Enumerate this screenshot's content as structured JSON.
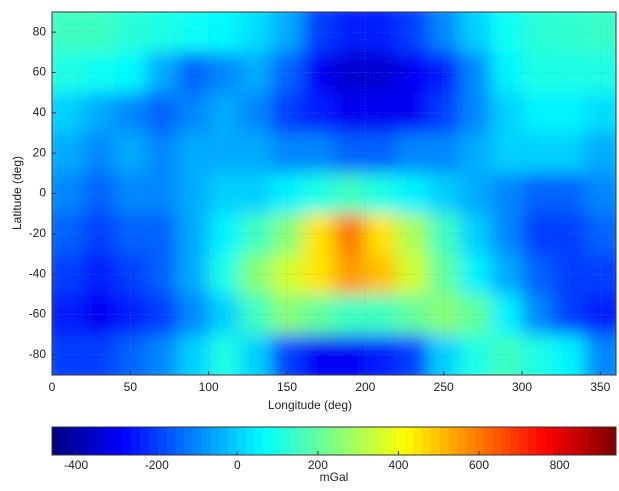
{
  "chart_data": {
    "type": "heatmap",
    "xlabel": "Longitude (deg)",
    "ylabel": "Latitude (deg)",
    "colorbar_label": "mGal",
    "colormap": "jet",
    "xlim": [
      0,
      360
    ],
    "xticks": [
      0,
      50,
      100,
      150,
      200,
      250,
      300,
      350
    ],
    "ylim": [
      -90,
      90
    ],
    "yticks": [
      -80,
      -60,
      -40,
      -20,
      0,
      20,
      40,
      60,
      80
    ],
    "clim": [
      -460,
      940
    ],
    "cticks": [
      -400,
      -200,
      0,
      200,
      400,
      600,
      800
    ],
    "grid": true,
    "x": [
      10,
      30,
      50,
      70,
      90,
      110,
      130,
      150,
      170,
      190,
      210,
      230,
      250,
      270,
      290,
      310,
      330,
      350
    ],
    "y": [
      80,
      60,
      40,
      20,
      0,
      -20,
      -40,
      -60,
      -80
    ],
    "z": [
      [
        150,
        150,
        120,
        100,
        80,
        60,
        20,
        -50,
        -200,
        -250,
        -250,
        -200,
        -100,
        0,
        80,
        120,
        130,
        140
      ],
      [
        100,
        80,
        60,
        -50,
        -150,
        -100,
        -50,
        -150,
        -300,
        -350,
        -350,
        -300,
        -250,
        -100,
        50,
        100,
        100,
        100
      ],
      [
        0,
        -50,
        -100,
        -150,
        -100,
        -50,
        -100,
        -200,
        -250,
        -300,
        -300,
        -300,
        -200,
        -100,
        0,
        50,
        50,
        20
      ],
      [
        -50,
        -100,
        -50,
        -100,
        -50,
        -50,
        -50,
        -100,
        -100,
        -150,
        -150,
        -100,
        -100,
        -50,
        0,
        0,
        0,
        -50
      ],
      [
        -100,
        -150,
        -100,
        -100,
        -50,
        0,
        0,
        50,
        100,
        150,
        100,
        50,
        0,
        -50,
        -100,
        -150,
        -150,
        -100
      ],
      [
        -150,
        -200,
        -150,
        -150,
        -50,
        50,
        150,
        250,
        450,
        600,
        450,
        300,
        150,
        0,
        -100,
        -200,
        -200,
        -150
      ],
      [
        -200,
        -250,
        -200,
        -150,
        -50,
        100,
        250,
        350,
        450,
        550,
        500,
        350,
        200,
        50,
        -50,
        -150,
        -200,
        -200
      ],
      [
        -250,
        -300,
        -250,
        -200,
        -100,
        0,
        150,
        250,
        200,
        150,
        150,
        200,
        250,
        200,
        50,
        -100,
        -200,
        -250
      ],
      [
        -200,
        -200,
        -150,
        -100,
        0,
        100,
        0,
        -200,
        -300,
        -300,
        -250,
        -200,
        0,
        100,
        150,
        100,
        50,
        -100
      ]
    ]
  }
}
